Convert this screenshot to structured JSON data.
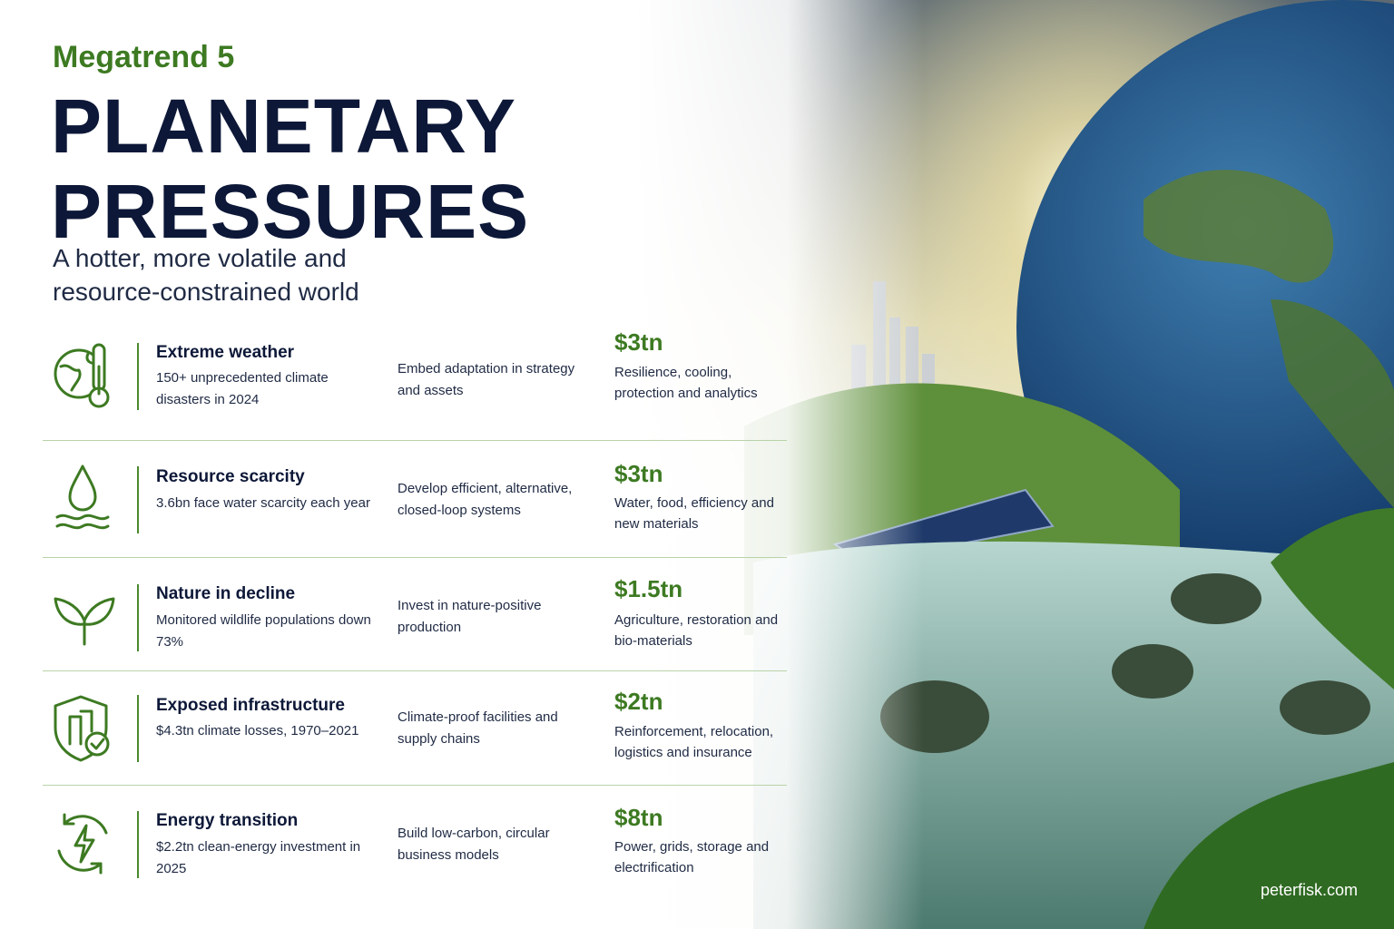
{
  "header": {
    "kicker": "Megatrend 5",
    "title": "PLANETARY PRESSURES",
    "subtitle": "A hotter, more volatile and resource-constrained world"
  },
  "rows": [
    {
      "title": "Extreme weather",
      "stat": "150+ unprecedented climate disasters in 2024",
      "action": "Embed adaptation in strategy and assets",
      "value": "$3tn",
      "value_desc": "Resilience, cooling, protection and analytics"
    },
    {
      "title": "Resource scarcity",
      "stat": "3.6bn face water scarcity each year",
      "action": "Develop efficient, alternative, closed-loop systems",
      "value": "$3tn",
      "value_desc": "Water, food, efficiency and new materials"
    },
    {
      "title": "Nature in decline",
      "stat": "Monitored wildlife populations down 73%",
      "action": "Invest in nature-positive production",
      "value": "$1.5tn",
      "value_desc": "Agriculture, restoration and bio-materials"
    },
    {
      "title": "Exposed infrastructure",
      "stat": "$4.3tn climate losses, 1970–2021",
      "action": "Climate-proof facilities and supply chains",
      "value": "$2tn",
      "value_desc": "Reinforcement, relocation, logistics and insurance"
    },
    {
      "title": "Energy transition",
      "stat": "$2.2tn clean-energy investment in 2025",
      "action": "Build low-carbon, circular business models",
      "value": "$8tn",
      "value_desc": "Power, grids, storage and electrification"
    }
  ],
  "footer": {
    "site": "peterfisk.com"
  }
}
